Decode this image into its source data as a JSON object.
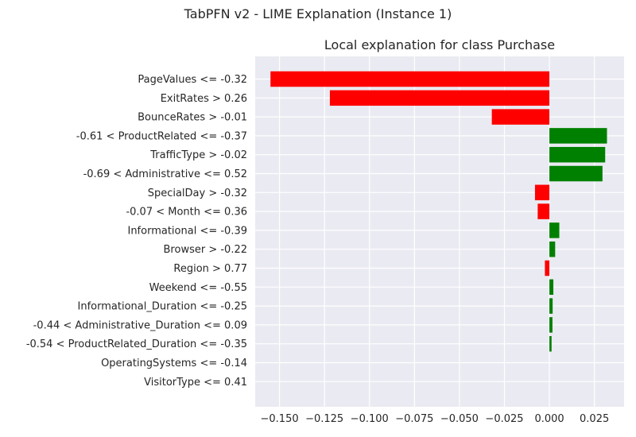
{
  "figure": {
    "suptitle": "TabPFN v2 - LIME Explanation (Instance 1)"
  },
  "chart_data": {
    "type": "bar",
    "orientation": "horizontal",
    "title": "Local explanation for class Purchase",
    "xlabel": "",
    "ylabel": "",
    "categories": [
      "PageValues <= -0.32",
      "ExitRates > 0.26",
      "BounceRates > -0.01",
      "-0.61 < ProductRelated <= -0.37",
      "TrafficType > -0.02",
      "-0.69 < Administrative <= 0.52",
      "SpecialDay > -0.32",
      "-0.07 < Month <= 0.36",
      "Informational <= -0.39",
      "Browser > -0.22",
      "Region > 0.77",
      "Weekend <= -0.55",
      "Informational_Duration <= -0.25",
      "-0.44 < Administrative_Duration <= 0.09",
      "-0.54 < ProductRelated_Duration <= -0.35",
      "OperatingSystems <= -0.14",
      "VisitorType <= 0.41"
    ],
    "values": [
      -0.155,
      -0.122,
      -0.032,
      0.032,
      0.031,
      0.0295,
      -0.008,
      -0.0065,
      0.0055,
      0.0032,
      -0.0025,
      0.0022,
      0.0018,
      0.0017,
      0.0012,
      0.0,
      0.0
    ],
    "xlim": [
      -0.1635,
      0.0415
    ],
    "xticks": [
      -0.15,
      -0.125,
      -0.1,
      -0.075,
      -0.05,
      -0.025,
      0.0,
      0.025
    ],
    "xtick_labels": [
      "−0.150",
      "−0.125",
      "−0.100",
      "−0.075",
      "−0.050",
      "−0.025",
      "0.000",
      "0.025"
    ],
    "colors": {
      "positive": "#008000",
      "negative": "#ff0000",
      "background": "#eaeaf2",
      "grid": "#ffffff"
    },
    "grid": true,
    "legend": "none"
  }
}
